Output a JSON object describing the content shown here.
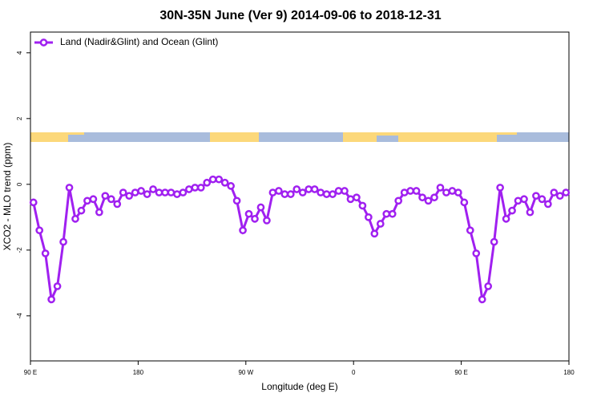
{
  "chart_data": {
    "type": "line",
    "title": "30N-35N June (Ver 9)   2014-09-06 to 2018-12-31",
    "xlabel": "Longitude (deg E)",
    "ylabel": "XCO2 - MLO trend (ppm)",
    "legend_position": "top-left",
    "xlim": [
      90,
      540
    ],
    "ylim": [
      -5.37,
      4.63
    ],
    "xticks": [
      {
        "value": 90,
        "label": "90 E"
      },
      {
        "value": 180,
        "label": "180"
      },
      {
        "value": 270,
        "label": "90 W"
      },
      {
        "value": 360,
        "label": "0"
      },
      {
        "value": 450,
        "label": "90 E"
      },
      {
        "value": 540,
        "label": "180"
      }
    ],
    "yticks": [
      -4,
      -2,
      0,
      2,
      4
    ],
    "x": [
      92.5,
      97.5,
      102.5,
      107.5,
      112.5,
      117.5,
      122.5,
      127.5,
      132.5,
      137.5,
      142.5,
      147.5,
      152.5,
      157.5,
      162.5,
      167.5,
      172.5,
      177.5,
      182.5,
      187.5,
      192.5,
      197.5,
      202.5,
      207.5,
      212.5,
      217.5,
      222.5,
      227.5,
      232.5,
      237.5,
      242.5,
      247.5,
      252.5,
      257.5,
      262.5,
      267.5,
      272.5,
      277.5,
      282.5,
      287.5,
      292.5,
      297.5,
      302.5,
      307.5,
      312.5,
      317.5,
      322.5,
      327.5,
      332.5,
      337.5,
      342.5,
      347.5,
      352.5,
      357.5,
      362.5,
      367.5,
      372.5,
      377.5,
      382.5,
      387.5,
      392.5,
      397.5,
      402.5,
      407.5,
      412.5,
      417.5,
      422.5,
      427.5,
      432.5,
      437.5,
      442.5,
      447.5,
      452.5,
      457.5,
      462.5,
      467.5,
      472.5,
      477.5,
      482.5,
      487.5,
      492.5,
      497.5,
      502.5,
      507.5,
      512.5,
      517.5,
      522.5,
      527.5,
      532.5,
      537.5
    ],
    "series": [
      {
        "name": "Land (Nadir&Glint) and Ocean (Glint)",
        "color": "#a020f0",
        "values": [
          -0.55,
          -1.4,
          -2.1,
          -3.5,
          -3.1,
          -1.75,
          -0.1,
          -1.05,
          -0.8,
          -0.5,
          -0.45,
          -0.85,
          -0.35,
          -0.45,
          -0.6,
          -0.25,
          -0.35,
          -0.25,
          -0.2,
          -0.3,
          -0.15,
          -0.25,
          -0.25,
          -0.25,
          -0.3,
          -0.25,
          -0.15,
          -0.1,
          -0.1,
          0.05,
          0.15,
          0.15,
          0.05,
          -0.05,
          -0.5,
          -1.4,
          -0.9,
          -1.05,
          -0.7,
          -1.1,
          -0.25,
          -0.2,
          -0.3,
          -0.3,
          -0.15,
          -0.25,
          -0.15,
          -0.15,
          -0.25,
          -0.3,
          -0.3,
          -0.2,
          -0.2,
          -0.45,
          -0.4,
          -0.65,
          -1.0,
          -1.5,
          -1.2,
          -0.9,
          -0.9,
          -0.5,
          -0.25,
          -0.2,
          -0.2,
          -0.4,
          -0.5,
          -0.4,
          -0.1,
          -0.25,
          -0.2,
          -0.25,
          -0.55,
          -1.4,
          -2.1,
          -3.5,
          -3.1,
          -1.75,
          -0.1,
          -1.05,
          -0.8,
          -0.5,
          -0.45,
          -0.85,
          -0.35,
          -0.45,
          -0.6,
          -0.25,
          -0.35,
          -0.25
        ]
      }
    ]
  }
}
